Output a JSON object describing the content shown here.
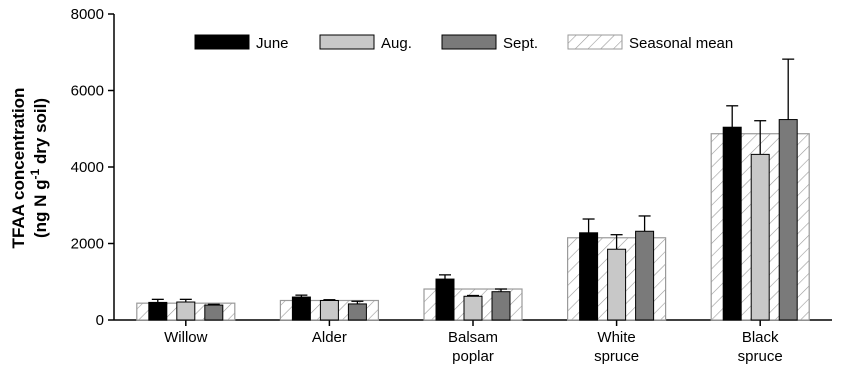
{
  "chart_data": {
    "type": "bar",
    "ylabel_line1": "TFAA concentration",
    "ylabel_line2_pre": "(ng N g",
    "ylabel_line2_sup": "-1",
    "ylabel_line2_post": " dry soil)",
    "ylim": [
      0,
      8000
    ],
    "yticks": [
      0,
      2000,
      4000,
      6000,
      8000
    ],
    "grid": false,
    "legend_position": "top",
    "categories": [
      [
        "Willow"
      ],
      [
        "Alder"
      ],
      [
        "Balsam",
        "poplar"
      ],
      [
        "White",
        "spruce"
      ],
      [
        "Black",
        "spruce"
      ]
    ],
    "series": [
      {
        "name": "June",
        "color": "#000000",
        "values": [
          460,
          600,
          1070,
          2280,
          5040
        ],
        "errors": [
          80,
          50,
          110,
          360,
          560
        ]
      },
      {
        "name": "Aug.",
        "color": "#c8c8c8",
        "values": [
          470,
          510,
          620,
          1850,
          4330
        ],
        "errors": [
          70,
          20,
          20,
          380,
          880
        ]
      },
      {
        "name": "Sept.",
        "color": "#7a7a7a",
        "values": [
          390,
          420,
          740,
          2320,
          5240
        ],
        "errors": [
          20,
          70,
          70,
          400,
          1580
        ]
      }
    ],
    "seasonal_mean": {
      "name": "Seasonal mean",
      "pattern": "diagonal-hatch",
      "values": [
        440,
        510,
        810,
        2150,
        4870
      ]
    }
  }
}
